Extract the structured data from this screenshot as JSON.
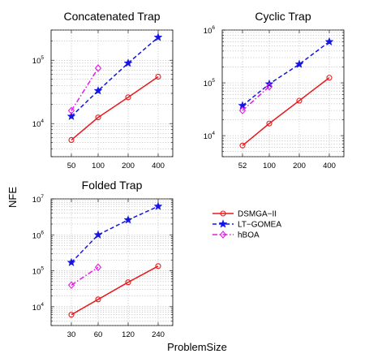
{
  "figure": {
    "ylabel": "NFE",
    "xlabel": "ProblemSize"
  },
  "legend": {
    "entries": [
      {
        "label": "DSMGA−II",
        "color": "#e8191c",
        "marker": "circle",
        "dash": "solid"
      },
      {
        "label": "LT−GOMEA",
        "color": "#1414e6",
        "marker": "star",
        "dash": "dashed"
      },
      {
        "label": "hBOA",
        "color": "#e619e6",
        "marker": "diamond",
        "dash": "dashdot"
      }
    ]
  },
  "chart_data": [
    {
      "type": "line",
      "title": "Concatenated Trap",
      "xscale": "category",
      "categories": [
        "50",
        "100",
        "200",
        "400"
      ],
      "yscale": "log",
      "ylim": [
        3000,
        300000
      ],
      "yticks": [
        {
          "value": 10000,
          "base": "10",
          "exp": "4"
        },
        {
          "value": 100000,
          "base": "10",
          "exp": "5"
        }
      ],
      "grid": true,
      "series": [
        {
          "name": "DSMGA−II",
          "values": [
            5500,
            12500,
            26000,
            55000
          ]
        },
        {
          "name": "LT−GOMEA",
          "values": [
            13000,
            33000,
            90000,
            230000
          ]
        },
        {
          "name": "hBOA",
          "values": [
            16000,
            75000,
            null,
            null
          ]
        }
      ]
    },
    {
      "type": "line",
      "title": "Cyclic Trap",
      "xscale": "category",
      "categories": [
        "52",
        "100",
        "200",
        "400"
      ],
      "yscale": "log",
      "ylim": [
        4000,
        1000000
      ],
      "yticks": [
        {
          "value": 10000,
          "base": "10",
          "exp": "4"
        },
        {
          "value": 100000,
          "base": "10",
          "exp": "5"
        },
        {
          "value": 1000000,
          "base": "10",
          "exp": "6"
        }
      ],
      "grid": true,
      "series": [
        {
          "name": "DSMGA−II",
          "values": [
            6500,
            17000,
            46000,
            125000
          ]
        },
        {
          "name": "LT−GOMEA",
          "values": [
            37000,
            95000,
            225000,
            600000
          ]
        },
        {
          "name": "hBOA",
          "values": [
            30000,
            85000,
            null,
            null
          ]
        }
      ]
    },
    {
      "type": "line",
      "title": "Folded Trap",
      "xscale": "category",
      "categories": [
        "30",
        "60",
        "120",
        "240"
      ],
      "yscale": "log",
      "ylim": [
        3000,
        10000000
      ],
      "yticks": [
        {
          "value": 10000,
          "base": "10",
          "exp": "4"
        },
        {
          "value": 100000,
          "base": "10",
          "exp": "5"
        },
        {
          "value": 1000000,
          "base": "10",
          "exp": "6"
        },
        {
          "value": 10000000,
          "base": "10",
          "exp": "7"
        }
      ],
      "grid": true,
      "series": [
        {
          "name": "DSMGA−II",
          "values": [
            6000,
            16000,
            48000,
            135000
          ]
        },
        {
          "name": "LT−GOMEA",
          "values": [
            170000,
            1000000,
            2600000,
            6200000
          ]
        },
        {
          "name": "hBOA",
          "values": [
            40000,
            125000,
            null,
            null
          ]
        }
      ]
    }
  ]
}
